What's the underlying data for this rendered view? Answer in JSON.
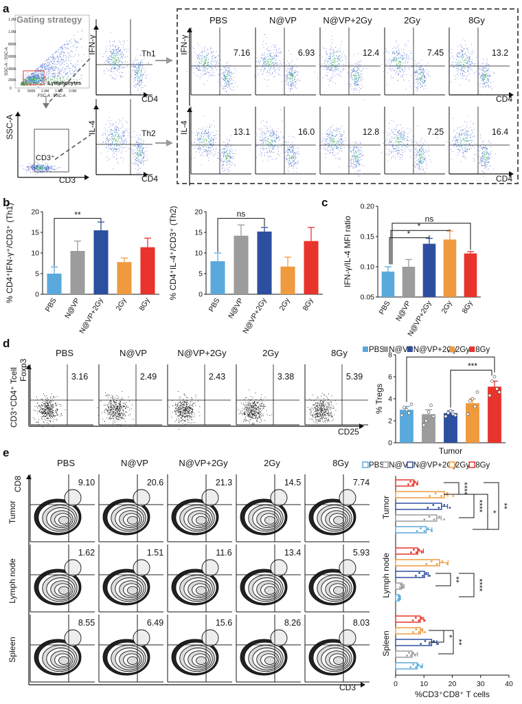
{
  "panel_labels": [
    "a",
    "b",
    "c",
    "d",
    "e"
  ],
  "colors": {
    "PBS": "#5aa9dc",
    "N@VP": "#9c9c9c",
    "N@VP+2Gy": "#2d4fa0",
    "2Gy": "#ef9a3e",
    "8Gy": "#e8342c",
    "panel_border": "#555555"
  },
  "groups": [
    "PBS",
    "N@VP",
    "N@VP+2Gy",
    "2Gy",
    "8Gy"
  ],
  "panel_a": {
    "gating_title": "Gating strategy",
    "gating_labels": {
      "ssc_small": "SSC-A : SSC-A",
      "fsc_small": "FSC-A : FSC-A",
      "lymphocytes": "Lymphocytes",
      "x_ticks": [
        "0",
        "500K",
        "1.0M",
        "1.5M",
        "2.0M"
      ],
      "y_ticks": [
        "1.2M",
        "1.0M",
        "800K",
        "600K",
        "400K",
        "200K",
        "0"
      ],
      "ssc": "SSC-A",
      "cd3": "CD3",
      "cd3_gate": "CD3⁺",
      "ifng": "IFN-γ",
      "il4": "IL-4",
      "cd4": "CD4",
      "th1": "Th1",
      "th2": "Th2"
    },
    "th1_values": [
      "7.16",
      "6.93",
      "12.4",
      "7.45",
      "13.2"
    ],
    "th2_values": [
      "13.1",
      "16.0",
      "12.8",
      "7.25",
      "16.4"
    ]
  },
  "panel_d_flow": {
    "y_label_1": "CD3⁺CD4⁺ Tcell",
    "y_label_2": "Foxp3",
    "x_label": "CD25",
    "values": [
      "3.16",
      "2.49",
      "2.43",
      "3.38",
      "5.39"
    ]
  },
  "panel_e_flow": {
    "y_label": "CD8",
    "x_label": "CD3",
    "row_labels": [
      "Tumor",
      "Lymph node",
      "Spleen"
    ],
    "values": [
      [
        "9.10",
        "20.6",
        "21.3",
        "14.5",
        "7.74"
      ],
      [
        "1.62",
        "1.51",
        "11.6",
        "13.4",
        "5.93"
      ],
      [
        "8.55",
        "6.49",
        "15.6",
        "8.26",
        "8.03"
      ]
    ]
  },
  "chart_data": [
    {
      "id": "b1",
      "type": "bar",
      "categories": [
        "PBS",
        "N@VP",
        "N@VP+2Gy",
        "2Gy",
        "8Gy"
      ],
      "values": [
        5.0,
        10.5,
        15.5,
        7.8,
        11.4
      ],
      "errors": [
        1.6,
        2.4,
        2.0,
        1.0,
        2.2
      ],
      "ylabel": "% CD4⁺IFN-γ⁺/CD3⁺ (Th1)",
      "ylim": [
        0,
        20
      ],
      "yticks": [
        "0",
        "5",
        "10",
        "15",
        "20"
      ],
      "significance": [
        {
          "from": "PBS",
          "to": "N@VP+2Gy",
          "label": "**"
        }
      ]
    },
    {
      "id": "b2",
      "type": "bar",
      "categories": [
        "PBS",
        "N@VP",
        "N@VP+2Gy",
        "2Gy",
        "8Gy"
      ],
      "values": [
        8.0,
        14.2,
        15.2,
        6.7,
        12.9
      ],
      "errors": [
        2.0,
        2.6,
        1.0,
        2.3,
        3.3
      ],
      "ylabel": "% CD4⁺IL-4⁺/CD3⁺ (Th2)",
      "ylim": [
        0,
        20
      ],
      "yticks": [
        "0",
        "5",
        "10",
        "15",
        "20"
      ],
      "significance": [
        {
          "from": "PBS",
          "to": "N@VP+2Gy",
          "label": "ns"
        }
      ]
    },
    {
      "id": "c",
      "type": "bar",
      "categories": [
        "PBS",
        "N@VP",
        "N@VP+2Gy",
        "2Gy",
        "8Gy"
      ],
      "values": [
        0.092,
        0.1,
        0.138,
        0.145,
        0.122
      ],
      "errors": [
        0.008,
        0.012,
        0.009,
        0.014,
        0.003
      ],
      "ylabel": "IFN-γ/IL-4 MFI ratio",
      "ylim": [
        0.05,
        0.2
      ],
      "yticks": [
        "0.05",
        "0.10",
        "0.15",
        "0.20"
      ],
      "significance": [
        {
          "from": "PBS",
          "to": "N@VP+2Gy",
          "label": "*"
        },
        {
          "from": "PBS",
          "to": "2Gy",
          "label": "*"
        },
        {
          "from": "PBS",
          "to": "8Gy",
          "label": "ns"
        }
      ]
    },
    {
      "id": "d",
      "type": "bar",
      "categories": [
        "PBS",
        "N@VP",
        "N@VP+2Gy",
        "2Gy",
        "8Gy"
      ],
      "values": [
        3.0,
        2.6,
        2.7,
        3.6,
        5.1
      ],
      "errors": [
        0.3,
        0.4,
        0.2,
        0.4,
        0.5
      ],
      "points": [
        [
          2.5,
          3.2,
          3.0,
          2.7,
          3.5
        ],
        [
          1.6,
          2.0,
          2.8,
          3.4,
          2.4
        ],
        [
          2.4,
          2.7,
          2.9,
          2.6,
          2.5
        ],
        [
          2.6,
          3.8,
          4.0,
          3.3,
          4.6
        ],
        [
          4.3,
          5.6,
          6.0,
          4.9,
          4.6
        ]
      ],
      "ylabel": "% Tregs",
      "xlabel": "Tumor",
      "ylim": [
        0,
        8
      ],
      "yticks": [
        "0",
        "2",
        "4",
        "6",
        "8"
      ],
      "legend": [
        "PBS",
        "N@VP",
        "N@VP+2Gy",
        "2Gy",
        "8Gy"
      ],
      "significance": [
        {
          "from": "PBS",
          "to": "8Gy",
          "label": "**"
        },
        {
          "from": "N@VP+2Gy",
          "to": "8Gy",
          "label": "***"
        }
      ]
    },
    {
      "id": "e",
      "type": "bar",
      "orientation": "horizontal",
      "groups": [
        "Tumor",
        "Lymph node",
        "Spleen"
      ],
      "categories": [
        "PBS",
        "N@VP",
        "N@VP+2Gy",
        "2Gy",
        "8Gy"
      ],
      "values": [
        [
          10.8,
          14.5,
          16.2,
          17.2,
          6.4
        ],
        [
          1.3,
          2.2,
          10.2,
          15.5,
          7.8
        ],
        [
          7.6,
          5.8,
          12.7,
          8.8,
          8.7
        ]
      ],
      "errors": [
        [
          2.0,
          1.6,
          2.1,
          1.2,
          1.4
        ],
        [
          0.4,
          0.8,
          1.3,
          3.0,
          2.0
        ],
        [
          1.9,
          1.9,
          1.8,
          0.8,
          1.2
        ]
      ],
      "xlabel": "%CD3⁺CD8⁺ T cells",
      "xlim": [
        0,
        40
      ],
      "xticks": [
        "0",
        "10",
        "20",
        "30",
        "40"
      ],
      "legend": [
        "PBS",
        "N@VP",
        "N@VP+2Gy",
        "2Gy",
        "8Gy"
      ],
      "significance": [
        {
          "group": "Tumor",
          "label": "****"
        },
        {
          "group": "Tumor",
          "label": "****"
        },
        {
          "group": "Tumor",
          "label": "*"
        },
        {
          "group": "Tumor",
          "label": "**"
        },
        {
          "group": "Lymph node",
          "label": "**"
        },
        {
          "group": "Lymph node",
          "label": "****"
        },
        {
          "group": "Spleen",
          "label": "*"
        },
        {
          "group": "Spleen",
          "label": "**"
        }
      ]
    }
  ]
}
